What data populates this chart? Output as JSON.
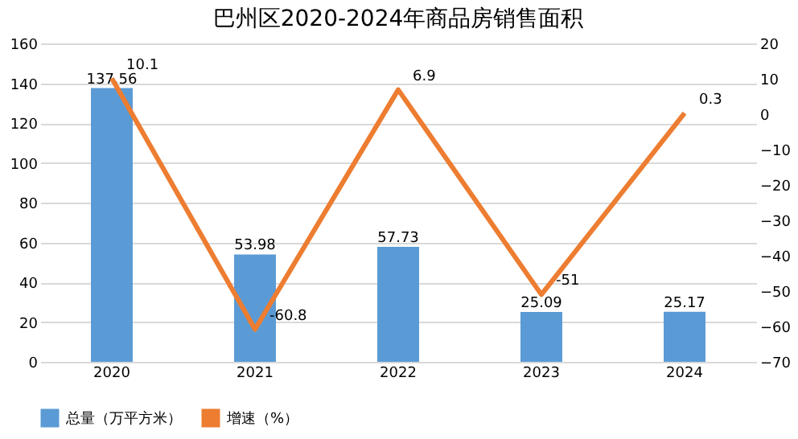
{
  "chart_data": {
    "type": "bar",
    "title": "巴州区2020-2024年商品房销售面积",
    "categories": [
      "2020",
      "2021",
      "2022",
      "2023",
      "2024"
    ],
    "series": [
      {
        "name": "总量（万平方米）",
        "color": "#5b9bd5",
        "values": [
          137.56,
          53.98,
          57.73,
          25.09,
          25.17
        ]
      },
      {
        "name": "增速（%）",
        "type": "line",
        "axis": "y2",
        "color": "#ed7d31",
        "values": [
          10.1,
          -60.8,
          6.9,
          -51,
          0.3
        ]
      }
    ],
    "ylim": [
      0,
      160
    ],
    "yticks": [
      0,
      20,
      40,
      60,
      80,
      100,
      120,
      140,
      160
    ],
    "y2lim": [
      -70,
      20
    ],
    "y2ticks": [
      -70,
      -60,
      -50,
      -40,
      -30,
      -20,
      -10,
      0,
      10,
      20
    ],
    "grid": "y",
    "legend": "bottom",
    "data_labels": true,
    "marker": "none",
    "line_style": "solid"
  }
}
